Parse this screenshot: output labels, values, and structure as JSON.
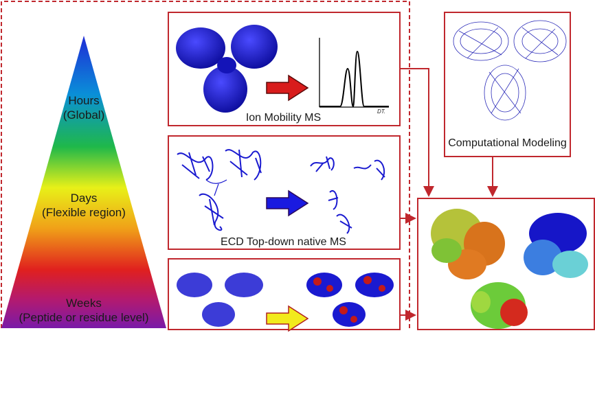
{
  "pyramid": {
    "levels": [
      {
        "time": "Hours",
        "detail": "(Global)"
      },
      {
        "time": "Days",
        "detail": "(Flexible region)"
      },
      {
        "time": "Weeks",
        "detail": "(Peptide or residue level)"
      }
    ],
    "gradient": [
      "#1f2bd6",
      "#0a8fd8",
      "#1fb84a",
      "#e8f018",
      "#f0a018",
      "#e0201e",
      "#b41a6e",
      "#7a1aa8"
    ]
  },
  "panels": {
    "ion_mobility": {
      "label": "Ion Mobility MS",
      "axis_label": "DT.",
      "arrow_color": "#d81c1c"
    },
    "ecd": {
      "label": "ECD Top-down native MS",
      "arrow_color": "#1a1ae0"
    },
    "hdx": {
      "arrow_color": "#f2ea1c"
    },
    "modeling": {
      "label": "Computational Modeling"
    }
  },
  "colors": {
    "frame": "#c0272d",
    "protein": "#1a1ad0"
  }
}
